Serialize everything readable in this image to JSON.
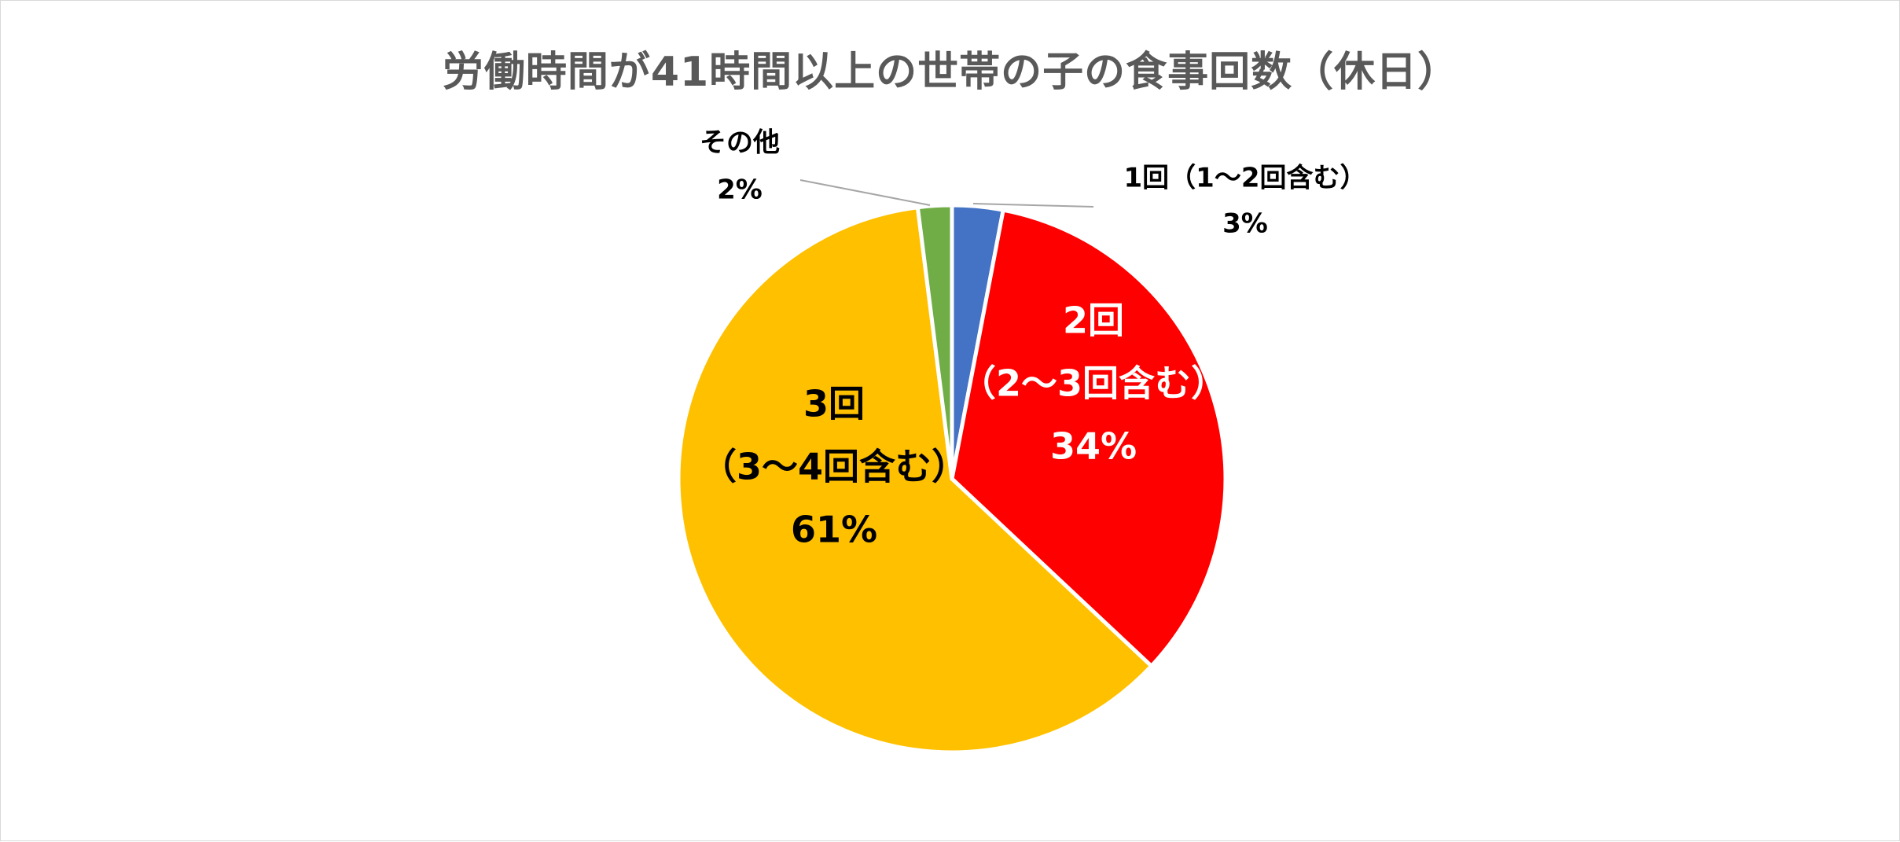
{
  "chart_data": {
    "type": "pie",
    "title": "労働時間が41時間以上の世帯の子の食事回数（休日）",
    "slices": [
      {
        "label_lines": [
          "1回（1～2回含む）"
        ],
        "value": 3,
        "value_label": "3%",
        "color": "#4472c4",
        "label_color": "#000000"
      },
      {
        "label_lines": [
          "2回",
          "（2～3回含む）"
        ],
        "value": 34,
        "value_label": "34%",
        "color": "#ff0000",
        "label_color": "#ffffff"
      },
      {
        "label_lines": [
          "3回",
          "（3～4回含む）"
        ],
        "value": 61,
        "value_label": "61%",
        "color": "#ffc000",
        "label_color": "#000000"
      },
      {
        "label_lines": [
          "その他"
        ],
        "value": 2,
        "value_label": "2%",
        "color": "#70ad47",
        "label_color": "#000000"
      }
    ],
    "start": "12 o'clock",
    "direction": "clockwise",
    "legend": "none"
  }
}
